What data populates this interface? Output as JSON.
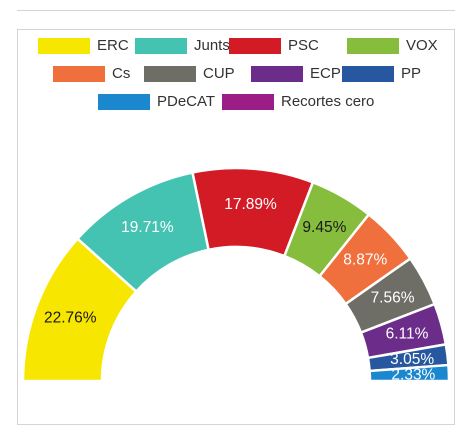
{
  "chart_data": {
    "type": "pie",
    "subtype": "half-donut",
    "title": "",
    "series": [
      {
        "name": "ERC",
        "value": 22.76,
        "label": "22.76%",
        "color": "#f7e600"
      },
      {
        "name": "Junts",
        "value": 19.71,
        "label": "19.71%",
        "color": "#44c3b3"
      },
      {
        "name": "PSC",
        "value": 17.89,
        "label": "17.89%",
        "color": "#d31b25"
      },
      {
        "name": "VOX",
        "value": 9.45,
        "label": "9.45%",
        "color": "#86bd3c"
      },
      {
        "name": "Cs",
        "value": 8.87,
        "label": "8.87%",
        "color": "#ef6f3d"
      },
      {
        "name": "CUP",
        "value": 7.56,
        "label": "7.56%",
        "color": "#6e6e66"
      },
      {
        "name": "ECP",
        "value": 6.11,
        "label": "6.11%",
        "color": "#6b2c8a"
      },
      {
        "name": "PP",
        "value": 3.05,
        "label": "3.05%",
        "color": "#27589f"
      },
      {
        "name": "PDeCAT",
        "value": 2.33,
        "label": "2.33%",
        "color": "#1a87cf"
      },
      {
        "name": "Recortes cero",
        "value": 0,
        "label": "",
        "color": "#9b1d85"
      }
    ],
    "legend": {
      "position": "top"
    }
  }
}
